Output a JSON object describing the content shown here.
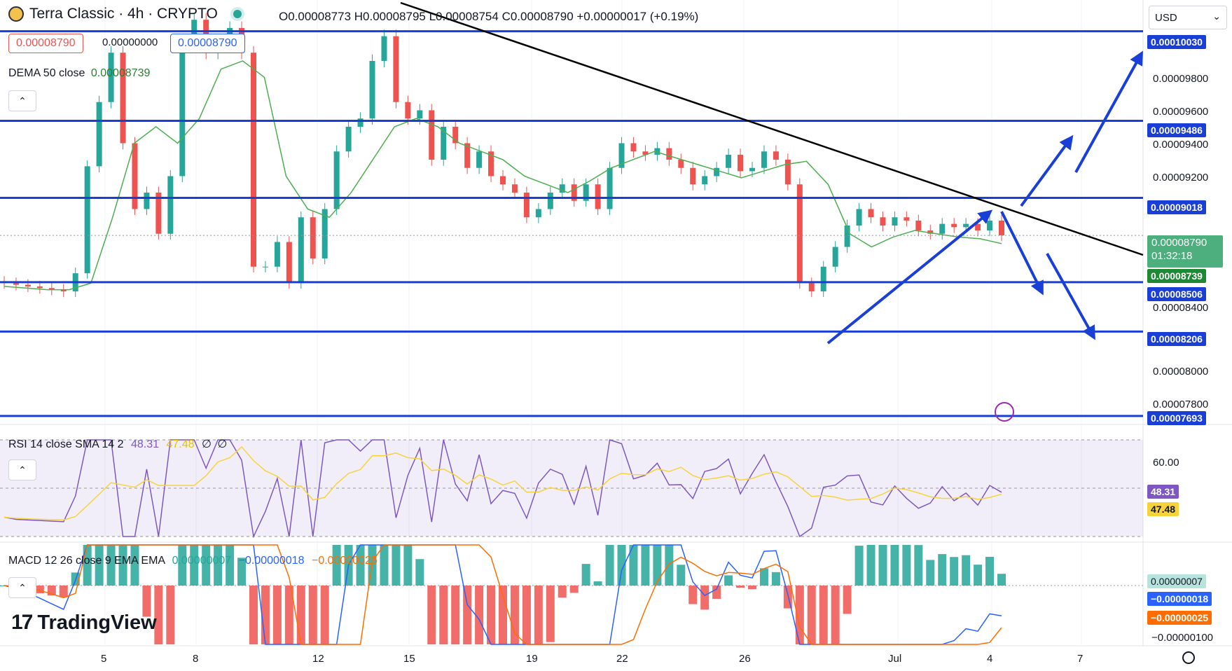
{
  "header": {
    "symbol_title": "Terra Classic · 4h · CRYPTO",
    "ohlc": "O0.00008773 H0.00008795 L0.00008754 C0.00008790 +0.00000017 (+0.19%)",
    "sell_price": "0.00008790",
    "spread": "0.00000000",
    "buy_price": "0.00008790"
  },
  "currency_selector": {
    "label": "USD",
    "icon": "chevron-down-icon"
  },
  "studies": {
    "dema": {
      "label": "DEMA 50 close",
      "value": "0.00008739"
    },
    "rsi": {
      "label": "RSI 14 close SMA 14 2",
      "value": "48.31",
      "sma": "47.48",
      "extra1": "∅",
      "extra2": "∅"
    },
    "macd": {
      "label": "MACD 12 26 close 9 EMA EMA",
      "hist": "0.00000007",
      "macd": "−0.00000018",
      "signal": "−0.00000025"
    }
  },
  "price_axis": {
    "ticks": [
      "0.00009800",
      "0.00009600",
      "0.00009400",
      "0.00009200",
      "0.00008400",
      "0.00008000",
      "0.00007800"
    ],
    "level_labels": [
      "0.00010030",
      "0.00009486",
      "0.00009018",
      "0.00008506",
      "0.00008206",
      "0.00007693"
    ],
    "last_price": "0.00008790",
    "countdown": "01:32:18",
    "dema_label": "0.00008739"
  },
  "rsi_axis": {
    "tick": "60.00",
    "rsi_label": "48.31",
    "sma_label": "47.48"
  },
  "macd_axis": {
    "hist_label": "0.00000007",
    "macd_label": "−0.00000018",
    "signal_label": "−0.00000025",
    "tick": "−0.00000100"
  },
  "time_axis": {
    "ticks": [
      "5",
      "8",
      "12",
      "15",
      "19",
      "22",
      "26",
      "Jul",
      "4",
      "7"
    ]
  },
  "branding": {
    "logo_text": "TradingView"
  },
  "colors": {
    "up": "#26a69a",
    "down": "#ef5350",
    "level": "#1a3fd6",
    "trend": "#000000",
    "dema": "#4caf50",
    "rsi": "#7e57c2",
    "rsi_sma": "#f7d33b",
    "macd": "#2962ff",
    "signal": "#ff6d00"
  },
  "chart_data": {
    "type": "candlestick",
    "title": "Terra Classic · 4h · CRYPTO",
    "x": [
      "5",
      "8",
      "12",
      "15",
      "19",
      "22",
      "26",
      "Jul",
      "4",
      "7"
    ],
    "horizontal_levels": [
      0.0001003,
      9.486e-05,
      9.018e-05,
      8.506e-05,
      8.206e-05,
      7.693e-05
    ],
    "close_path": [
      [
        8.5e-05,
        8.49e-05,
        8.48e-05,
        8.47e-05,
        8.46e-05,
        8.45e-05,
        8.56e-05,
        9.21e-05,
        9.6e-05,
        9.9e-05,
        9.35e-05,
        8.95e-05,
        9.05e-05,
        8.8e-05,
        9.15e-05,
        9.95e-05,
        0.000101,
        9.9e-05,
        9.95e-05,
        0.0001005,
        9.9e-05,
        8.6e-05,
        8.6e-05,
        8.75e-05,
        8.5e-05,
        8.9e-05,
        8.65e-05,
        8.95e-05,
        9.3e-05,
        9.45e-05,
        9.5e-05,
        9.85e-05,
        0.0001,
        9.6e-05,
        9.5e-05,
        9.55e-05,
        9.25e-05,
        9.45e-05,
        9.35e-05,
        9.2e-05,
        9.3e-05,
        9.15e-05,
        9.1e-05,
        9.05e-05,
        8.9e-05,
        8.95e-05,
        9.05e-05,
        9.1e-05,
        9e-05,
        9.1e-05,
        8.95e-05,
        9.2e-05,
        9.35e-05,
        9.3e-05,
        9.28e-05,
        9.32e-05,
        9.25e-05,
        9.2e-05,
        9.1e-05,
        9.15e-05,
        9.2e-05,
        9.28e-05,
        9.18e-05,
        9.2e-05,
        9.3e-05,
        9.25e-05,
        9.1e-05,
        8.5e-05,
        8.45e-05,
        8.6e-05,
        8.72e-05,
        8.85e-05,
        8.95e-05,
        8.9e-05,
        8.85e-05,
        8.9e-05,
        8.88e-05,
        8.82e-05,
        8.8e-05,
        8.86e-05,
        8.84e-05,
        8.86e-05,
        8.82e-05,
        8.88e-05,
        8.79e-05
      ]
    ],
    "dema_path": [
      8.48e-05,
      8.47e-05,
      8.46e-05,
      8.46e-05,
      8.5e-05,
      8.9e-05,
      9.35e-05,
      9.45e-05,
      9.35e-05,
      9.5e-05,
      9.8e-05,
      9.85e-05,
      9.75e-05,
      9.15e-05,
      8.95e-05,
      8.9e-05,
      9.05e-05,
      9.25e-05,
      9.45e-05,
      9.5e-05,
      9.45e-05,
      9.35e-05,
      9.3e-05,
      9.25e-05,
      9.15e-05,
      9.1e-05,
      9.05e-05,
      9.12e-05,
      9.2e-05,
      9.25e-05,
      9.3e-05,
      9.26e-05,
      9.22e-05,
      9.18e-05,
      9.14e-05,
      9.18e-05,
      9.22e-05,
      9.24e-05,
      9.1e-05,
      8.8e-05,
      8.72e-05,
      8.78e-05,
      8.82e-05,
      8.8e-05,
      8.78e-05,
      8.77e-05,
      8.74e-05
    ],
    "rsi_range": [
      30,
      70
    ],
    "rsi_values": {
      "last": 48.31,
      "sma": 47.48
    },
    "macd_values": {
      "hist": 7e-08,
      "macd": -1.8e-07,
      "signal": -2.5e-07
    },
    "price_axis_range": [
      7.65e-05,
      0.0001022
    ]
  }
}
